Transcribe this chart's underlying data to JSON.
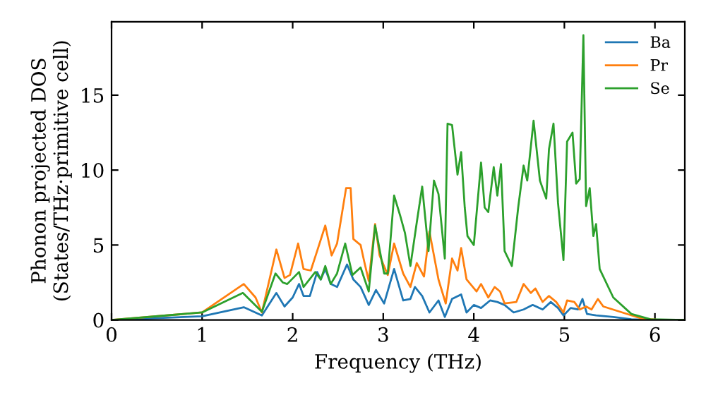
{
  "chart_data": {
    "type": "line",
    "xlabel": "Frequency (THz)",
    "ylabel": "Phonon projected DOS\n(States/THz·primitive cell)",
    "xlim": [
      0,
      6.33
    ],
    "ylim": [
      0,
      19.9
    ],
    "xticks": [
      0,
      1,
      2,
      3,
      4,
      5,
      6
    ],
    "yticks": [
      0,
      5,
      10,
      15
    ],
    "grid": false,
    "legend": "top right",
    "marker": "none",
    "line_style": "solid",
    "series": [
      {
        "name": "Ba",
        "color": "#1f77b4",
        "x": [
          0,
          1.0,
          1.46,
          1.66,
          1.82,
          1.91,
          2.0,
          2.07,
          2.12,
          2.19,
          2.27,
          2.31,
          2.36,
          2.42,
          2.49,
          2.6,
          2.67,
          2.75,
          2.84,
          2.92,
          3.01,
          3.12,
          3.22,
          3.3,
          3.35,
          3.43,
          3.51,
          3.61,
          3.68,
          3.76,
          3.86,
          3.92,
          4.0,
          4.08,
          4.18,
          4.26,
          4.34,
          4.44,
          4.55,
          4.65,
          4.76,
          4.85,
          4.93,
          4.99,
          5.07,
          5.15,
          5.2,
          5.25,
          5.35,
          5.54,
          5.74,
          5.95,
          6.33
        ],
        "values": [
          0,
          0.25,
          0.85,
          0.3,
          1.8,
          0.9,
          1.5,
          2.4,
          1.6,
          1.6,
          3.2,
          2.7,
          3.4,
          2.4,
          2.2,
          3.7,
          2.7,
          2.2,
          1.0,
          2.0,
          1.1,
          3.4,
          1.3,
          1.4,
          2.2,
          1.6,
          0.5,
          1.3,
          0.2,
          1.4,
          1.7,
          0.5,
          1.0,
          0.8,
          1.3,
          1.2,
          1.0,
          0.5,
          0.7,
          1.0,
          0.7,
          1.2,
          0.8,
          0.3,
          0.8,
          0.7,
          1.4,
          0.4,
          0.3,
          0.2,
          0.05,
          0,
          0
        ]
      },
      {
        "name": "Pr",
        "color": "#ff7f0e",
        "x": [
          0,
          1.0,
          1.46,
          1.59,
          1.66,
          1.82,
          1.91,
          1.97,
          2.06,
          2.12,
          2.2,
          2.27,
          2.36,
          2.43,
          2.49,
          2.59,
          2.64,
          2.67,
          2.75,
          2.79,
          2.84,
          2.91,
          2.96,
          3.05,
          3.12,
          3.22,
          3.3,
          3.37,
          3.45,
          3.51,
          3.61,
          3.69,
          3.76,
          3.82,
          3.86,
          3.92,
          4.03,
          4.08,
          4.16,
          4.23,
          4.29,
          4.34,
          4.47,
          4.55,
          4.63,
          4.68,
          4.76,
          4.83,
          4.91,
          4.99,
          5.03,
          5.11,
          5.17,
          5.24,
          5.3,
          5.37,
          5.43,
          5.64,
          5.85,
          6.05,
          6.33
        ],
        "values": [
          0,
          0.5,
          2.4,
          1.5,
          0.5,
          4.7,
          2.8,
          3.0,
          5.1,
          3.4,
          3.3,
          4.6,
          6.3,
          4.3,
          5.1,
          8.8,
          8.8,
          5.4,
          5.0,
          3.9,
          2.6,
          6.4,
          4.3,
          3.0,
          5.1,
          3.1,
          2.2,
          3.8,
          2.9,
          5.9,
          2.7,
          1.1,
          4.1,
          3.3,
          4.8,
          2.7,
          1.9,
          2.4,
          1.5,
          2.2,
          1.9,
          1.1,
          1.2,
          2.4,
          1.8,
          2.1,
          1.2,
          1.6,
          1.2,
          0.5,
          1.3,
          1.2,
          0.7,
          0.9,
          0.7,
          1.4,
          0.9,
          0.5,
          0.1,
          0,
          0
        ]
      },
      {
        "name": "Se",
        "color": "#2ca02c",
        "x": [
          0,
          1.0,
          1.45,
          1.66,
          1.81,
          1.89,
          1.94,
          2.07,
          2.12,
          2.25,
          2.31,
          2.36,
          2.42,
          2.49,
          2.58,
          2.66,
          2.75,
          2.84,
          2.91,
          3.01,
          3.05,
          3.12,
          3.19,
          3.24,
          3.3,
          3.37,
          3.43,
          3.5,
          3.56,
          3.61,
          3.68,
          3.71,
          3.76,
          3.82,
          3.86,
          3.9,
          3.93,
          4.0,
          4.08,
          4.12,
          4.16,
          4.22,
          4.26,
          4.3,
          4.34,
          4.42,
          4.49,
          4.55,
          4.59,
          4.66,
          4.73,
          4.8,
          4.83,
          4.88,
          4.93,
          4.99,
          5.03,
          5.09,
          5.13,
          5.17,
          5.21,
          5.24,
          5.28,
          5.32,
          5.35,
          5.39,
          5.54,
          5.74,
          5.95,
          6.33
        ],
        "values": [
          0,
          0.5,
          1.8,
          0.55,
          3.1,
          2.5,
          2.4,
          3.2,
          2.2,
          3.2,
          2.7,
          3.6,
          2.4,
          3.1,
          5.1,
          3.0,
          3.5,
          1.9,
          6.3,
          3.1,
          3.1,
          8.3,
          6.9,
          5.8,
          3.6,
          6.5,
          8.9,
          4.6,
          9.3,
          8.4,
          4.1,
          13.1,
          13.0,
          9.7,
          11.2,
          7.5,
          5.6,
          5.0,
          10.5,
          7.5,
          7.2,
          10.2,
          8.3,
          10.4,
          4.6,
          3.6,
          7.5,
          10.3,
          9.3,
          13.3,
          9.3,
          8.1,
          11.4,
          13.1,
          7.8,
          4.0,
          11.9,
          12.5,
          9.1,
          9.4,
          19.0,
          7.6,
          8.8,
          5.6,
          6.4,
          3.4,
          1.5,
          0.4,
          0.05,
          0
        ]
      }
    ]
  }
}
